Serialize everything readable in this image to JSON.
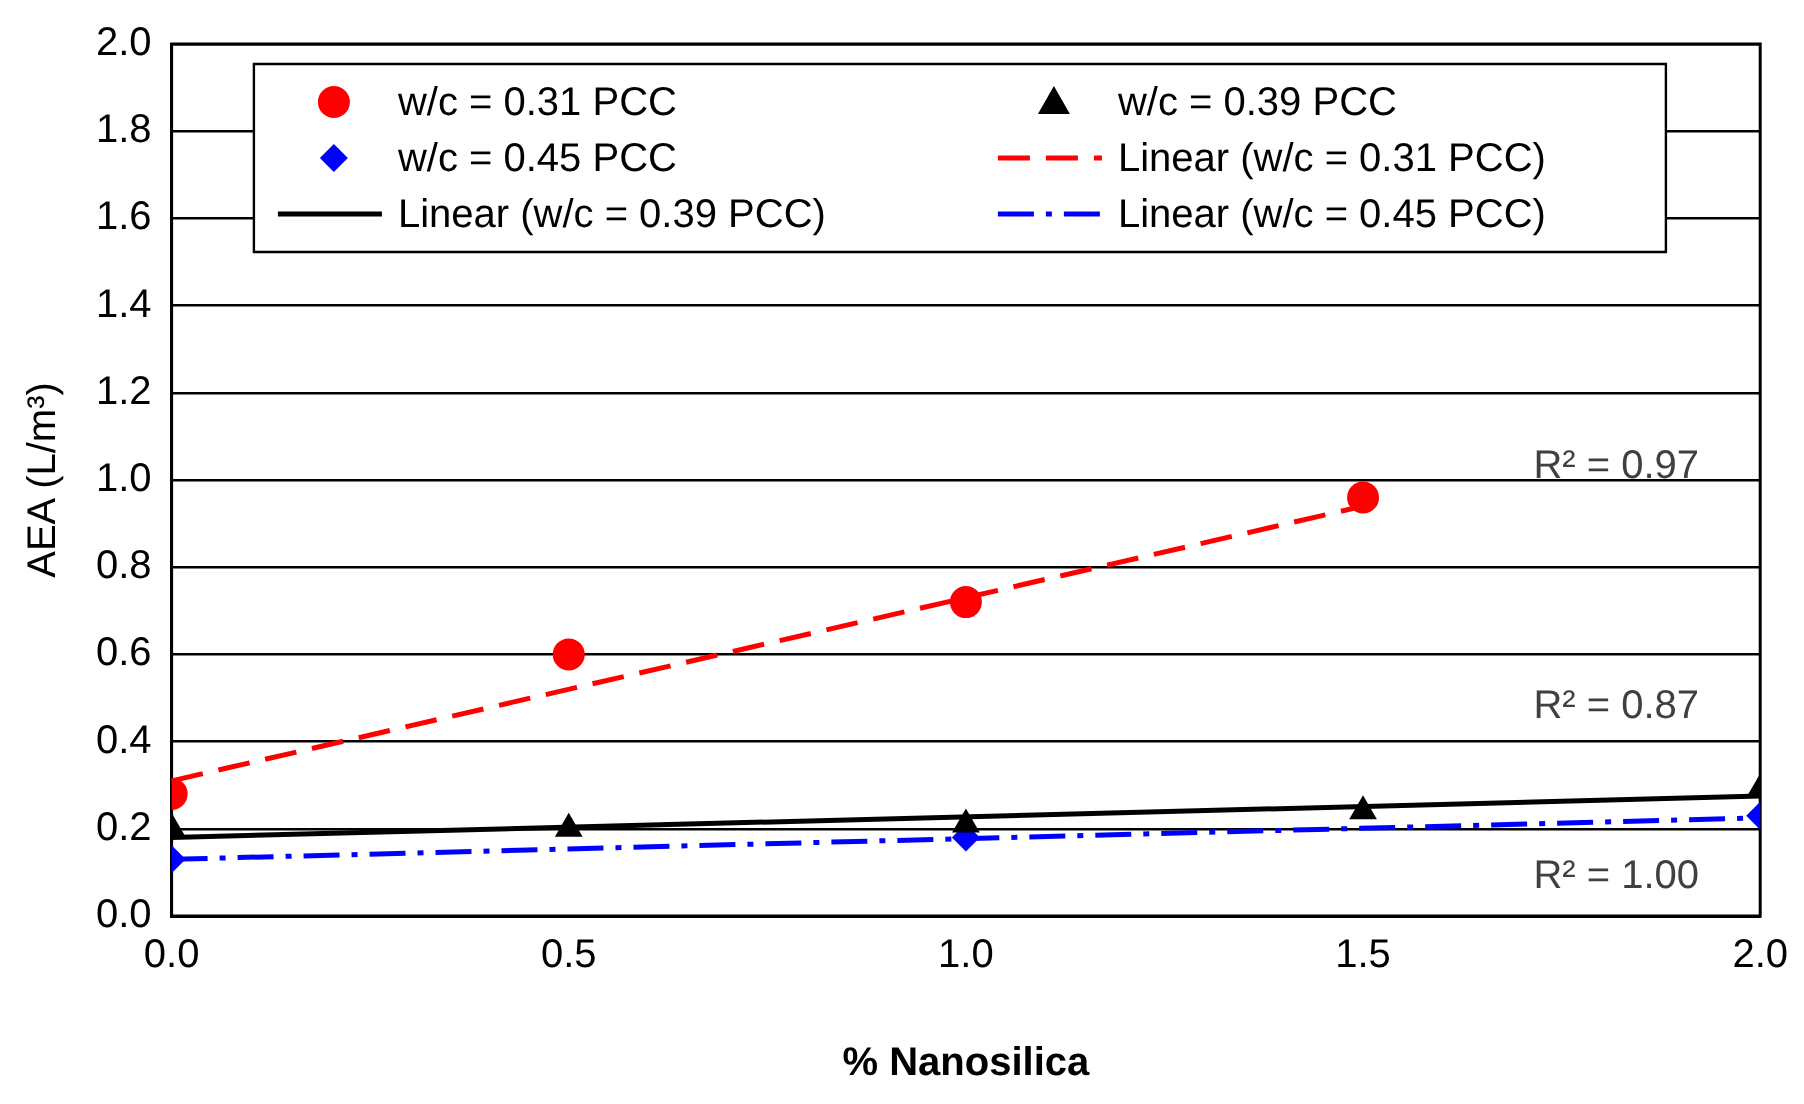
{
  "chart_data": {
    "type": "scatter",
    "xlabel": "% Nanosilica",
    "ylabel": "AEA (L/m³)",
    "x": [
      0,
      0.5,
      1,
      1.5,
      2
    ],
    "series": [
      {
        "name": "w/c = 0.31 PCC",
        "type": "scatter",
        "marker": "circle",
        "color": "#ff0000",
        "values": [
          0.28,
          0.6,
          0.72,
          0.96,
          null
        ]
      },
      {
        "name": "w/c = 0.39 PCC",
        "type": "scatter",
        "marker": "triangle",
        "color": "#000000",
        "values": [
          0.2,
          0.2,
          0.21,
          0.24,
          0.29
        ]
      },
      {
        "name": "w/c = 0.45 PCC",
        "type": "scatter",
        "marker": "diamond",
        "color": "#0000ff",
        "values": [
          0.13,
          null,
          0.18,
          null,
          0.23
        ]
      },
      {
        "name": "Linear (w/c = 0.31 PCC)",
        "type": "line",
        "marker": "none",
        "line_style": "dashed",
        "color": "#ff0000",
        "x": [
          0,
          1.5
        ],
        "values": [
          0.31,
          0.94
        ]
      },
      {
        "name": "Linear (w/c = 0.39 PCC)",
        "type": "line",
        "marker": "none",
        "line_style": "solid",
        "color": "#000000",
        "x": [
          0,
          2
        ],
        "values": [
          0.18,
          0.275
        ]
      },
      {
        "name": "Linear (w/c = 0.45 PCC)",
        "type": "line",
        "marker": "none",
        "line_style": "dashdot",
        "color": "#0000ff",
        "x": [
          0,
          2
        ],
        "values": [
          0.13,
          0.225
        ]
      }
    ],
    "xlim": [
      0,
      2
    ],
    "xticks": [
      {
        "value": 0,
        "label": "0.0"
      },
      {
        "value": 0.5,
        "label": "0.5"
      },
      {
        "value": 1,
        "label": "1.0"
      },
      {
        "value": 1.5,
        "label": "1.5"
      },
      {
        "value": 2,
        "label": "2.0"
      }
    ],
    "ylim": [
      0,
      2
    ],
    "yticks": [
      {
        "value": 0,
        "label": "0.0"
      },
      {
        "value": 0.2,
        "label": "0.2"
      },
      {
        "value": 0.4,
        "label": "0.4"
      },
      {
        "value": 0.6,
        "label": "0.6"
      },
      {
        "value": 0.8,
        "label": "0.8"
      },
      {
        "value": 1,
        "label": "1.0"
      },
      {
        "value": 1.2,
        "label": "1.2"
      },
      {
        "value": 1.4,
        "label": "1.4"
      },
      {
        "value": 1.6,
        "label": "1.6"
      },
      {
        "value": 1.8,
        "label": "1.8"
      },
      {
        "value": 2,
        "label": "2.0"
      }
    ],
    "grid": "y",
    "legend": "top",
    "annotations": [
      "R² = 0.97",
      "R² = 0.87",
      "R² = 1.00"
    ]
  }
}
